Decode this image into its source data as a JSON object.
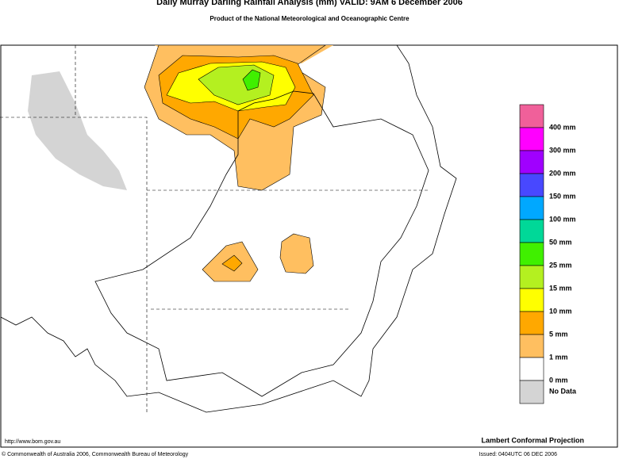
{
  "header": {
    "title": "Daily Murray Darling Rainfall Analysis (mm)  VALID: 9AM  6 December 2006",
    "subtitle": "Product of the National Meteorological and Oceanographic Centre"
  },
  "legend": {
    "colors": [
      "#f0609a",
      "#ff00ff",
      "#a000ff",
      "#4848ff",
      "#00a8ff",
      "#00d898",
      "#40f000",
      "#b4f020",
      "#ffff00",
      "#ffa800",
      "#ffbf60",
      "#ffffff",
      "#d4d4d4"
    ],
    "labels": [
      "400 mm",
      "300 mm",
      "200 mm",
      "150 mm",
      "100 mm",
      "50 mm",
      "25 mm",
      "15 mm",
      "10 mm",
      "5 mm",
      "1 mm",
      "0 mm"
    ],
    "no_data": "No Data"
  },
  "footer": {
    "url": "http://www.bom.gov.au",
    "projection": "Lambert Conformal Projection",
    "copyright": "© Commonwealth of Australia 2006, Commonwealth Bureau of Meteorology",
    "issued": "Issued: 0404UTC 06 DEC 2006"
  }
}
